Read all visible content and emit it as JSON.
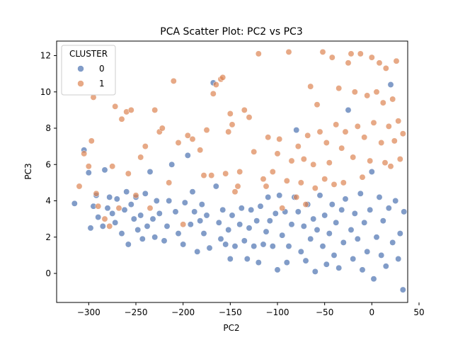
{
  "chart_data": {
    "type": "scatter",
    "title": "PCA Scatter Plot: PC2 vs PC3",
    "xlabel": "PC2",
    "ylabel": "PC3",
    "xlim": [
      -334,
      38
    ],
    "ylim": [
      -1.6,
      12.8
    ],
    "xticks": [
      -300,
      -250,
      -200,
      -150,
      -100,
      -50,
      0,
      50
    ],
    "xtick_labels": [
      "−300",
      "−250",
      "−200",
      "−150",
      "−100",
      "−50",
      "0",
      "50"
    ],
    "yticks": [
      0,
      2,
      4,
      6,
      8,
      10,
      12
    ],
    "ytick_labels": [
      "0",
      "2",
      "4",
      "6",
      "8",
      "10",
      "12"
    ],
    "grid": false,
    "legend": {
      "title": "CLUSTER",
      "placement": "top-left",
      "entries": [
        {
          "label": "0",
          "color": "#4c72b0"
        },
        {
          "label": "1",
          "color": "#dd8452"
        }
      ]
    },
    "series": [
      {
        "name": "0",
        "color": "#4c72b0",
        "points": [
          [
            -315,
            3.85
          ],
          [
            -305,
            6.8
          ],
          [
            -300,
            5.55
          ],
          [
            -298,
            2.5
          ],
          [
            -295,
            3.7
          ],
          [
            -292,
            4.3
          ],
          [
            -290,
            3.1
          ],
          [
            -285,
            2.6
          ],
          [
            -283,
            5.7
          ],
          [
            -280,
            3.6
          ],
          [
            -278,
            4.2
          ],
          [
            -275,
            3.3
          ],
          [
            -272,
            2.8
          ],
          [
            -270,
            4.1
          ],
          [
            -265,
            2.2
          ],
          [
            -262,
            3.5
          ],
          [
            -260,
            4.5
          ],
          [
            -258,
            1.6
          ],
          [
            -255,
            3.8
          ],
          [
            -252,
            3.0
          ],
          [
            -250,
            4.2
          ],
          [
            -248,
            2.4
          ],
          [
            -245,
            3.2
          ],
          [
            -243,
            1.9
          ],
          [
            -240,
            4.4
          ],
          [
            -238,
            2.6
          ],
          [
            -235,
            5.6
          ],
          [
            -232,
            3.0
          ],
          [
            -230,
            2.0
          ],
          [
            -228,
            4.0
          ],
          [
            -225,
            3.3
          ],
          [
            -220,
            1.8
          ],
          [
            -217,
            2.6
          ],
          [
            -215,
            4.0
          ],
          [
            -212,
            6.0
          ],
          [
            -208,
            3.4
          ],
          [
            -205,
            2.2
          ],
          [
            -200,
            1.6
          ],
          [
            -198,
            3.9
          ],
          [
            -195,
            6.5
          ],
          [
            -192,
            2.7
          ],
          [
            -190,
            4.5
          ],
          [
            -188,
            3.4
          ],
          [
            -185,
            1.2
          ],
          [
            -182,
            2.9
          ],
          [
            -180,
            3.8
          ],
          [
            -178,
            2.2
          ],
          [
            -175,
            3.2
          ],
          [
            -172,
            1.4
          ],
          [
            -168,
            10.5
          ],
          [
            -165,
            4.8
          ],
          [
            -162,
            2.8
          ],
          [
            -160,
            1.9
          ],
          [
            -158,
            3.5
          ],
          [
            -155,
            1.6
          ],
          [
            -152,
            2.4
          ],
          [
            -150,
            0.8
          ],
          [
            -148,
            3.2
          ],
          [
            -145,
            1.5
          ],
          [
            -140,
            2.7
          ],
          [
            -138,
            3.6
          ],
          [
            -135,
            1.8
          ],
          [
            -132,
            0.8
          ],
          [
            -130,
            2.5
          ],
          [
            -128,
            3.5
          ],
          [
            -125,
            1.5
          ],
          [
            -122,
            2.9
          ],
          [
            -120,
            0.6
          ],
          [
            -118,
            3.7
          ],
          [
            -115,
            1.6
          ],
          [
            -112,
            2.3
          ],
          [
            -110,
            4.2
          ],
          [
            -108,
            2.9
          ],
          [
            -105,
            1.5
          ],
          [
            -102,
            3.3
          ],
          [
            -100,
            0.2
          ],
          [
            -98,
            4.3
          ],
          [
            -95,
            2.1
          ],
          [
            -92,
            3.4
          ],
          [
            -90,
            0.6
          ],
          [
            -88,
            1.5
          ],
          [
            -85,
            2.7
          ],
          [
            -82,
            4.2
          ],
          [
            -80,
            7.9
          ],
          [
            -78,
            3.4
          ],
          [
            -75,
            1.2
          ],
          [
            -72,
            2.6
          ],
          [
            -70,
            0.7
          ],
          [
            -68,
            3.8
          ],
          [
            -65,
            1.9
          ],
          [
            -62,
            3.0
          ],
          [
            -60,
            0.1
          ],
          [
            -58,
            2.4
          ],
          [
            -55,
            4.3
          ],
          [
            -52,
            1.5
          ],
          [
            -50,
            3.2
          ],
          [
            -48,
            0.5
          ],
          [
            -45,
            2.2
          ],
          [
            -42,
            3.8
          ],
          [
            -40,
            1.0
          ],
          [
            -38,
            2.8
          ],
          [
            -35,
            0.3
          ],
          [
            -32,
            3.5
          ],
          [
            -30,
            1.7
          ],
          [
            -28,
            4.1
          ],
          [
            -25,
            9.0
          ],
          [
            -22,
            2.4
          ],
          [
            -20,
            0.8
          ],
          [
            -18,
            3.3
          ],
          [
            -15,
            1.9
          ],
          [
            -12,
            4.4
          ],
          [
            -10,
            0.2
          ],
          [
            -8,
            2.8
          ],
          [
            -5,
            1.2
          ],
          [
            -2,
            3.5
          ],
          [
            0,
            5.6
          ],
          [
            2,
            -0.3
          ],
          [
            5,
            2.0
          ],
          [
            8,
            4.2
          ],
          [
            10,
            1.0
          ],
          [
            12,
            2.9
          ],
          [
            15,
            0.4
          ],
          [
            18,
            3.6
          ],
          [
            20,
            10.4
          ],
          [
            22,
            1.7
          ],
          [
            25,
            4.0
          ],
          [
            28,
            0.8
          ],
          [
            30,
            2.2
          ],
          [
            33,
            -0.9
          ],
          [
            34,
            3.4
          ]
        ]
      },
      {
        "name": "1",
        "color": "#dd8452",
        "points": [
          [
            -310,
            4.8
          ],
          [
            -305,
            6.6
          ],
          [
            -300,
            5.9
          ],
          [
            -297,
            7.3
          ],
          [
            -295,
            9.7
          ],
          [
            -292,
            4.4
          ],
          [
            -290,
            3.7
          ],
          [
            -283,
            3.0
          ],
          [
            -278,
            2.6
          ],
          [
            -275,
            5.9
          ],
          [
            -272,
            9.2
          ],
          [
            -268,
            3.6
          ],
          [
            -265,
            8.5
          ],
          [
            -260,
            8.9
          ],
          [
            -258,
            5.5
          ],
          [
            -255,
            9.0
          ],
          [
            -250,
            4.3
          ],
          [
            -245,
            6.4
          ],
          [
            -240,
            7.0
          ],
          [
            -235,
            3.6
          ],
          [
            -230,
            9.0
          ],
          [
            -225,
            7.8
          ],
          [
            -222,
            8.0
          ],
          [
            -215,
            5.0
          ],
          [
            -210,
            10.6
          ],
          [
            -205,
            7.2
          ],
          [
            -200,
            2.7
          ],
          [
            -195,
            7.6
          ],
          [
            -190,
            7.4
          ],
          [
            -182,
            6.8
          ],
          [
            -178,
            5.4
          ],
          [
            -175,
            7.9
          ],
          [
            -170,
            5.4
          ],
          [
            -168,
            9.9
          ],
          [
            -165,
            10.4
          ],
          [
            -160,
            10.7
          ],
          [
            -158,
            10.8
          ],
          [
            -155,
            5.5
          ],
          [
            -152,
            7.8
          ],
          [
            -150,
            8.8
          ],
          [
            -148,
            8.2
          ],
          [
            -145,
            4.5
          ],
          [
            -142,
            4.8
          ],
          [
            -140,
            5.6
          ],
          [
            -135,
            9.0
          ],
          [
            -130,
            8.6
          ],
          [
            -125,
            6.7
          ],
          [
            -120,
            12.1
          ],
          [
            -115,
            5.2
          ],
          [
            -112,
            4.8
          ],
          [
            -110,
            7.5
          ],
          [
            -105,
            5.6
          ],
          [
            -100,
            6.6
          ],
          [
            -98,
            7.4
          ],
          [
            -95,
            3.6
          ],
          [
            -90,
            5.1
          ],
          [
            -88,
            12.2
          ],
          [
            -85,
            6.2
          ],
          [
            -80,
            4.2
          ],
          [
            -78,
            7.0
          ],
          [
            -75,
            5.0
          ],
          [
            -72,
            6.3
          ],
          [
            -70,
            3.8
          ],
          [
            -68,
            7.6
          ],
          [
            -65,
            10.3
          ],
          [
            -62,
            6.0
          ],
          [
            -60,
            4.7
          ],
          [
            -58,
            9.3
          ],
          [
            -55,
            7.8
          ],
          [
            -52,
            12.2
          ],
          [
            -50,
            5.2
          ],
          [
            -48,
            7.2
          ],
          [
            -45,
            6.1
          ],
          [
            -42,
            11.9
          ],
          [
            -40,
            4.9
          ],
          [
            -38,
            8.2
          ],
          [
            -35,
            10.2
          ],
          [
            -32,
            6.9
          ],
          [
            -30,
            5.0
          ],
          [
            -28,
            7.8
          ],
          [
            -25,
            11.6
          ],
          [
            -22,
            12.1
          ],
          [
            -20,
            6.4
          ],
          [
            -18,
            10.0
          ],
          [
            -15,
            8.1
          ],
          [
            -12,
            12.1
          ],
          [
            -10,
            5.3
          ],
          [
            -8,
            7.5
          ],
          [
            -5,
            9.8
          ],
          [
            -2,
            6.2
          ],
          [
            0,
            11.9
          ],
          [
            2,
            8.3
          ],
          [
            5,
            10.0
          ],
          [
            8,
            11.6
          ],
          [
            10,
            7.2
          ],
          [
            12,
            9.4
          ],
          [
            14,
            6.1
          ],
          [
            15,
            11.3
          ],
          [
            18,
            8.1
          ],
          [
            20,
            5.9
          ],
          [
            22,
            9.6
          ],
          [
            24,
            7.3
          ],
          [
            26,
            11.7
          ],
          [
            28,
            8.4
          ],
          [
            30,
            6.3
          ],
          [
            33,
            7.7
          ]
        ]
      }
    ]
  }
}
